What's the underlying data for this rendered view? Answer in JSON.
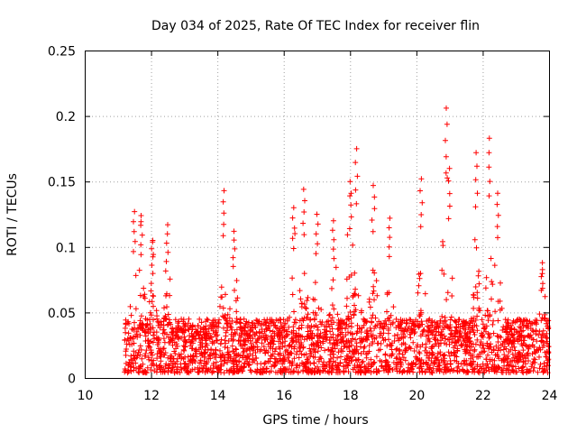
{
  "chart_data": {
    "type": "scatter",
    "title": "Day 034 of 2025, Rate Of TEC Index for receiver flin",
    "xlabel": "GPS time / hours",
    "ylabel": "ROTI / TECUs",
    "xlim": [
      10,
      24
    ],
    "ylim": [
      0,
      0.25
    ],
    "xticks": [
      "10",
      "12",
      "14",
      "16",
      "18",
      "20",
      "22",
      "24"
    ],
    "yticks": [
      "0",
      "0.05",
      "0.1",
      "0.15",
      "0.2",
      "0.25"
    ],
    "grid": true,
    "marker": "plus",
    "color": "#ff0000",
    "series": [
      {
        "name": "ROTI",
        "x_start": 11.2,
        "x_end": 24.0,
        "peaks": [
          {
            "x": 11.5,
            "y": 0.127
          },
          {
            "x": 11.7,
            "y": 0.124
          },
          {
            "x": 12.05,
            "y": 0.105
          },
          {
            "x": 12.5,
            "y": 0.117
          },
          {
            "x": 14.2,
            "y": 0.143
          },
          {
            "x": 14.5,
            "y": 0.112
          },
          {
            "x": 16.3,
            "y": 0.13
          },
          {
            "x": 16.6,
            "y": 0.144
          },
          {
            "x": 17.0,
            "y": 0.125
          },
          {
            "x": 17.5,
            "y": 0.12
          },
          {
            "x": 18.0,
            "y": 0.15
          },
          {
            "x": 18.2,
            "y": 0.175
          },
          {
            "x": 18.7,
            "y": 0.147
          },
          {
            "x": 19.2,
            "y": 0.122
          },
          {
            "x": 20.15,
            "y": 0.152
          },
          {
            "x": 20.9,
            "y": 0.206
          },
          {
            "x": 21.0,
            "y": 0.16
          },
          {
            "x": 21.8,
            "y": 0.172
          },
          {
            "x": 22.2,
            "y": 0.183
          },
          {
            "x": 22.45,
            "y": 0.141
          },
          {
            "x": 23.8,
            "y": 0.088
          }
        ]
      }
    ]
  }
}
